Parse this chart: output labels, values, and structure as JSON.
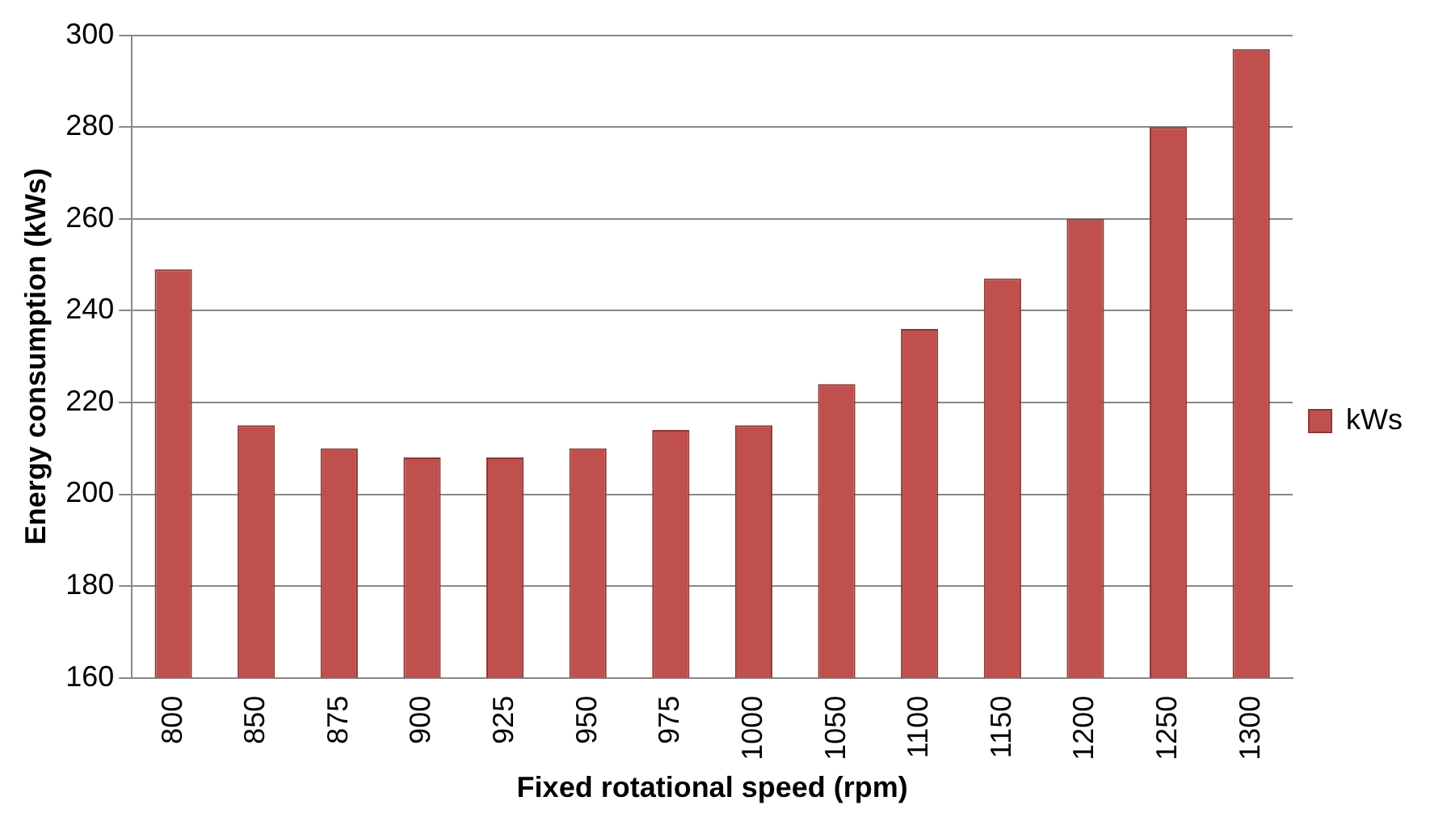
{
  "chart_data": {
    "type": "bar",
    "xlabel": "Fixed rotational speed (rpm)",
    "ylabel": "Energy consumption (kWs)",
    "categories": [
      "800",
      "850",
      "875",
      "900",
      "925",
      "950",
      "975",
      "1000",
      "1050",
      "1100",
      "1150",
      "1200",
      "1250",
      "1300"
    ],
    "series": [
      {
        "name": "kWs",
        "color": "#c0504d",
        "values": [
          249,
          215,
          210,
          208,
          208,
          210,
          214,
          215,
          224,
          236,
          247,
          260,
          280,
          297
        ]
      }
    ],
    "ylim": [
      160,
      300
    ],
    "yticks": [
      160,
      180,
      200,
      220,
      240,
      260,
      280,
      300
    ],
    "grid": "y",
    "legend": "right"
  }
}
